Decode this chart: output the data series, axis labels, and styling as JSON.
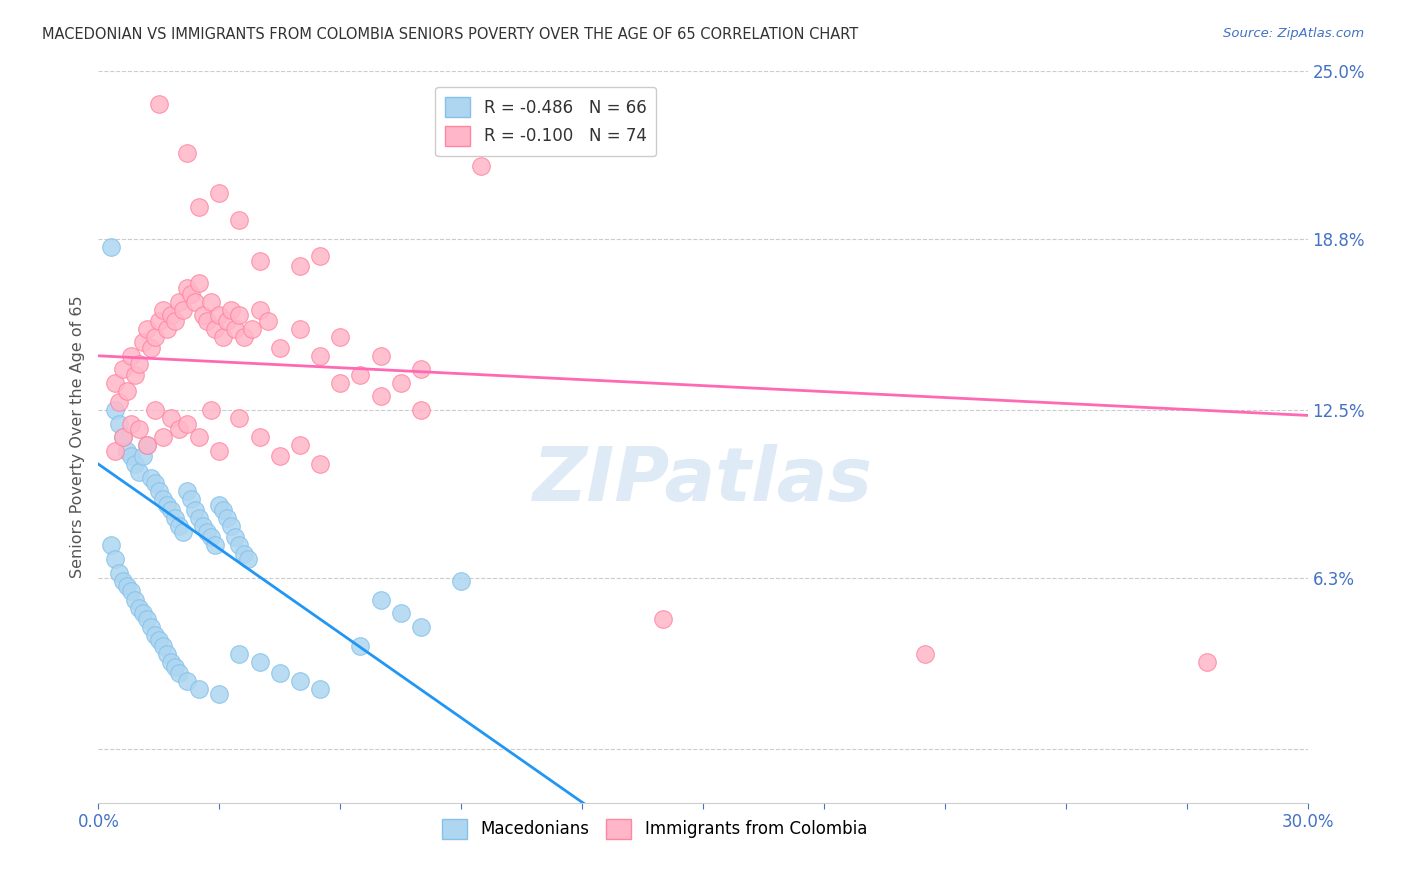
{
  "title": "MACEDONIAN VS IMMIGRANTS FROM COLOMBIA SENIORS POVERTY OVER THE AGE OF 65 CORRELATION CHART",
  "source": "Source: ZipAtlas.com",
  "ylabel_label": "Seniors Poverty Over the Age of 65",
  "xlim": [
    0.0,
    30.0
  ],
  "ylim": [
    -2.0,
    25.0
  ],
  "ytick_positions": [
    0.0,
    6.3,
    12.5,
    18.8,
    25.0
  ],
  "ytick_labels": [
    "",
    "6.3%",
    "12.5%",
    "18.8%",
    "25.0%"
  ],
  "xtick_positions": [
    0.0,
    3.0,
    6.0,
    9.0,
    12.0,
    15.0,
    18.0,
    21.0,
    24.0,
    27.0,
    30.0
  ],
  "xtick_labels": [
    "0.0%",
    "",
    "",
    "",
    "",
    "",
    "",
    "",
    "",
    "",
    "30.0%"
  ],
  "watermark": "ZIPatlas",
  "blue_trend_x": [
    0.0,
    12.5
  ],
  "blue_trend_y": [
    10.5,
    -2.5
  ],
  "pink_trend_x": [
    0.0,
    30.0
  ],
  "pink_trend_y": [
    14.5,
    12.3
  ],
  "blue_dots": [
    [
      0.3,
      18.5
    ],
    [
      0.4,
      12.5
    ],
    [
      0.5,
      12.0
    ],
    [
      0.6,
      11.5
    ],
    [
      0.7,
      11.0
    ],
    [
      0.8,
      10.8
    ],
    [
      0.9,
      10.5
    ],
    [
      1.0,
      10.2
    ],
    [
      1.1,
      10.8
    ],
    [
      1.2,
      11.2
    ],
    [
      1.3,
      10.0
    ],
    [
      1.4,
      9.8
    ],
    [
      1.5,
      9.5
    ],
    [
      1.6,
      9.2
    ],
    [
      1.7,
      9.0
    ],
    [
      1.8,
      8.8
    ],
    [
      1.9,
      8.5
    ],
    [
      2.0,
      8.2
    ],
    [
      2.1,
      8.0
    ],
    [
      2.2,
      9.5
    ],
    [
      2.3,
      9.2
    ],
    [
      2.4,
      8.8
    ],
    [
      2.5,
      8.5
    ],
    [
      2.6,
      8.2
    ],
    [
      2.7,
      8.0
    ],
    [
      2.8,
      7.8
    ],
    [
      2.9,
      7.5
    ],
    [
      3.0,
      9.0
    ],
    [
      3.1,
      8.8
    ],
    [
      3.2,
      8.5
    ],
    [
      3.3,
      8.2
    ],
    [
      3.4,
      7.8
    ],
    [
      3.5,
      7.5
    ],
    [
      3.6,
      7.2
    ],
    [
      3.7,
      7.0
    ],
    [
      0.3,
      7.5
    ],
    [
      0.4,
      7.0
    ],
    [
      0.5,
      6.5
    ],
    [
      0.6,
      6.2
    ],
    [
      0.7,
      6.0
    ],
    [
      0.8,
      5.8
    ],
    [
      0.9,
      5.5
    ],
    [
      1.0,
      5.2
    ],
    [
      1.1,
      5.0
    ],
    [
      1.2,
      4.8
    ],
    [
      1.3,
      4.5
    ],
    [
      1.4,
      4.2
    ],
    [
      1.5,
      4.0
    ],
    [
      1.6,
      3.8
    ],
    [
      1.7,
      3.5
    ],
    [
      1.8,
      3.2
    ],
    [
      1.9,
      3.0
    ],
    [
      2.0,
      2.8
    ],
    [
      2.2,
      2.5
    ],
    [
      2.5,
      2.2
    ],
    [
      3.0,
      2.0
    ],
    [
      3.5,
      3.5
    ],
    [
      4.0,
      3.2
    ],
    [
      4.5,
      2.8
    ],
    [
      5.0,
      2.5
    ],
    [
      5.5,
      2.2
    ],
    [
      6.5,
      3.8
    ],
    [
      7.0,
      5.5
    ],
    [
      7.5,
      5.0
    ],
    [
      8.0,
      4.5
    ],
    [
      9.0,
      6.2
    ]
  ],
  "pink_dots": [
    [
      0.4,
      13.5
    ],
    [
      0.5,
      12.8
    ],
    [
      0.6,
      14.0
    ],
    [
      0.7,
      13.2
    ],
    [
      0.8,
      14.5
    ],
    [
      0.9,
      13.8
    ],
    [
      1.0,
      14.2
    ],
    [
      1.1,
      15.0
    ],
    [
      1.2,
      15.5
    ],
    [
      1.3,
      14.8
    ],
    [
      1.4,
      15.2
    ],
    [
      1.5,
      15.8
    ],
    [
      1.6,
      16.2
    ],
    [
      1.7,
      15.5
    ],
    [
      1.8,
      16.0
    ],
    [
      1.9,
      15.8
    ],
    [
      2.0,
      16.5
    ],
    [
      2.1,
      16.2
    ],
    [
      2.2,
      17.0
    ],
    [
      2.3,
      16.8
    ],
    [
      2.4,
      16.5
    ],
    [
      2.5,
      17.2
    ],
    [
      2.6,
      16.0
    ],
    [
      2.7,
      15.8
    ],
    [
      2.8,
      16.5
    ],
    [
      2.9,
      15.5
    ],
    [
      3.0,
      16.0
    ],
    [
      3.1,
      15.2
    ],
    [
      3.2,
      15.8
    ],
    [
      3.3,
      16.2
    ],
    [
      3.4,
      15.5
    ],
    [
      3.5,
      16.0
    ],
    [
      3.6,
      15.2
    ],
    [
      3.8,
      15.5
    ],
    [
      4.0,
      16.2
    ],
    [
      4.2,
      15.8
    ],
    [
      4.5,
      14.8
    ],
    [
      5.0,
      15.5
    ],
    [
      5.5,
      14.5
    ],
    [
      6.0,
      15.2
    ],
    [
      6.5,
      13.8
    ],
    [
      7.0,
      14.5
    ],
    [
      7.5,
      13.5
    ],
    [
      8.0,
      14.0
    ],
    [
      0.4,
      11.0
    ],
    [
      0.6,
      11.5
    ],
    [
      0.8,
      12.0
    ],
    [
      1.0,
      11.8
    ],
    [
      1.2,
      11.2
    ],
    [
      1.4,
      12.5
    ],
    [
      1.6,
      11.5
    ],
    [
      1.8,
      12.2
    ],
    [
      2.0,
      11.8
    ],
    [
      2.2,
      12.0
    ],
    [
      2.5,
      11.5
    ],
    [
      2.8,
      12.5
    ],
    [
      3.0,
      11.0
    ],
    [
      3.5,
      12.2
    ],
    [
      4.0,
      11.5
    ],
    [
      4.5,
      10.8
    ],
    [
      5.0,
      11.2
    ],
    [
      5.5,
      10.5
    ],
    [
      6.0,
      13.5
    ],
    [
      7.0,
      13.0
    ],
    [
      1.5,
      23.8
    ],
    [
      2.2,
      22.0
    ],
    [
      2.5,
      20.0
    ],
    [
      3.0,
      20.5
    ],
    [
      3.5,
      19.5
    ],
    [
      4.0,
      18.0
    ],
    [
      5.0,
      17.8
    ],
    [
      5.5,
      18.2
    ],
    [
      8.0,
      12.5
    ],
    [
      9.5,
      21.5
    ],
    [
      14.0,
      4.8
    ],
    [
      20.5,
      3.5
    ],
    [
      27.5,
      3.2
    ]
  ]
}
